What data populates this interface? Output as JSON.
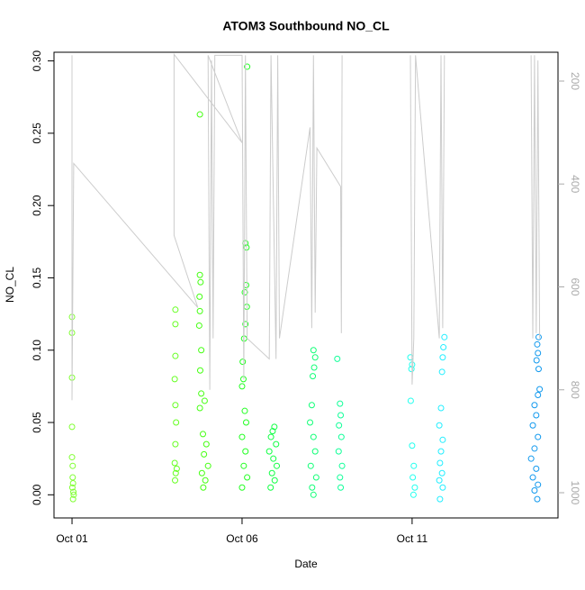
{
  "chart_data": {
    "type": "scatter",
    "title": "ATOM3 Southbound NO_CL",
    "x_label": "Date",
    "y_label": "NO_CL",
    "xlim": [
      -0.53,
      14.29
    ],
    "ylim": [
      -0.016,
      0.306
    ],
    "y2lim": [
      1049,
      144
    ],
    "xticks": [
      {
        "value": 0,
        "label": "Oct 01"
      },
      {
        "value": 5,
        "label": "Oct 06"
      },
      {
        "value": 10,
        "label": "Oct 11"
      }
    ],
    "yticks": [
      {
        "value": 0,
        "label": "0.00"
      },
      0.05,
      {
        "value": 0.1,
        "label": "0.10"
      },
      0.15,
      {
        "value": 0.2,
        "label": "0.20"
      },
      0.25,
      {
        "value": 0.3,
        "label": "0.30"
      }
    ],
    "y2ticks": [
      200,
      400,
      600,
      800,
      1000
    ],
    "series": [
      {
        "color": "#80ff33",
        "x": [
          0.0,
          0.0,
          0.0,
          0.0,
          0.0,
          0.02,
          0.02,
          0.03,
          0.01,
          0.04,
          0.05,
          0.03
        ],
        "values": [
          0.123,
          0.112,
          0.081,
          0.047,
          0.026,
          0.02,
          0.012,
          0.008,
          0.005,
          0.002,
          0.0,
          -0.003
        ]
      },
      {
        "color": "#66ff22",
        "x": [
          3.04,
          3.04,
          3.04,
          3.02,
          3.04,
          3.06,
          3.04,
          3.02,
          3.08,
          3.05,
          3.03
        ],
        "values": [
          0.128,
          0.118,
          0.096,
          0.08,
          0.062,
          0.05,
          0.035,
          0.022,
          0.018,
          0.015,
          0.01
        ]
      },
      {
        "color": "#44ff11",
        "x": [
          3.76,
          3.76,
          3.78,
          3.75,
          3.76,
          3.74,
          3.8,
          3.77,
          3.8,
          3.76,
          3.9,
          3.85,
          3.95,
          3.88,
          4.0,
          3.82,
          3.92,
          3.86
        ],
        "values": [
          0.263,
          0.152,
          0.147,
          0.137,
          0.127,
          0.117,
          0.1,
          0.086,
          0.07,
          0.06,
          0.065,
          0.042,
          0.035,
          0.028,
          0.02,
          0.015,
          0.01,
          0.005
        ]
      },
      {
        "color": "#22ff22",
        "x": [
          5.15,
          5.1,
          5.13,
          5.12,
          5.08,
          5.14,
          5.1,
          5.06,
          5.02,
          5.04,
          5.0,
          5.08,
          5.12,
          5.0,
          5.1,
          5.05,
          5.15,
          5.0
        ],
        "values": [
          0.296,
          0.174,
          0.171,
          0.145,
          0.14,
          0.13,
          0.118,
          0.108,
          0.092,
          0.08,
          0.075,
          0.058,
          0.05,
          0.04,
          0.03,
          0.02,
          0.012,
          0.005
        ]
      },
      {
        "color": "#11ff44",
        "x": [
          5.95,
          5.9,
          5.85,
          6.0,
          5.8,
          5.92,
          6.02,
          5.88,
          5.96,
          5.84
        ],
        "values": [
          0.047,
          0.044,
          0.04,
          0.035,
          0.03,
          0.025,
          0.02,
          0.015,
          0.01,
          0.005
        ]
      },
      {
        "color": "#11ff77",
        "x": [
          7.1,
          7.15,
          7.12,
          7.08,
          7.05,
          7.0,
          7.1,
          7.15,
          7.02,
          7.18,
          7.06,
          7.1
        ],
        "values": [
          0.1,
          0.095,
          0.088,
          0.082,
          0.062,
          0.05,
          0.04,
          0.03,
          0.02,
          0.012,
          0.005,
          0.0
        ]
      },
      {
        "color": "#11ff99",
        "x": [
          7.8,
          7.88,
          7.9,
          7.85,
          7.92,
          7.84,
          7.94,
          7.88,
          7.9
        ],
        "values": [
          0.094,
          0.063,
          0.055,
          0.048,
          0.04,
          0.03,
          0.02,
          0.012,
          0.005
        ]
      },
      {
        "color": "#22ffee",
        "x": [
          9.95,
          10.0,
          9.98,
          9.96,
          10.0,
          10.05,
          10.02,
          10.08,
          10.04
        ],
        "values": [
          0.095,
          0.09,
          0.087,
          0.065,
          0.034,
          0.02,
          0.012,
          0.005,
          0.0
        ]
      },
      {
        "color": "#22eeff",
        "x": [
          10.95,
          10.92,
          10.9,
          10.88,
          10.85,
          10.8,
          10.9,
          10.85,
          10.82,
          10.88,
          10.8,
          10.9,
          10.82
        ],
        "values": [
          0.109,
          0.102,
          0.095,
          0.085,
          0.06,
          0.048,
          0.038,
          0.03,
          0.022,
          0.015,
          0.01,
          0.005,
          -0.003
        ]
      },
      {
        "color": "#1199ee",
        "x": [
          13.72,
          13.68,
          13.7,
          13.66,
          13.72,
          13.75,
          13.7,
          13.6,
          13.65,
          13.55,
          13.7,
          13.6,
          13.5,
          13.65,
          13.55,
          13.7,
          13.6,
          13.68
        ],
        "values": [
          0.109,
          0.104,
          0.098,
          0.093,
          0.087,
          0.073,
          0.069,
          0.062,
          0.055,
          0.048,
          0.04,
          0.032,
          0.025,
          0.018,
          0.012,
          0.007,
          0.003,
          -0.003
        ]
      },
      {
        "type": "line",
        "axis": "y2",
        "color": "#cccccc",
        "x": [
          0.0,
          0.0,
          0.05,
          3.7,
          3.0,
          3.0,
          5.0,
          4.0,
          4.05,
          4.1,
          4.15,
          4.2,
          5.0,
          5.05,
          5.1,
          5.15,
          5.8,
          5.85,
          6.0,
          6.05,
          6.1,
          7.0,
          7.05,
          7.1,
          7.15,
          7.2,
          7.9,
          7.92,
          7.94,
          null,
          9.95,
          10.0,
          10.05,
          10.1,
          10.8,
          10.85,
          10.9,
          10.95,
          null,
          13.5,
          13.55,
          13.6,
          13.65,
          13.7,
          13.75
        ],
        "values": [
          150,
          820,
          360,
          640,
          500,
          148,
          320,
          150,
          800,
          160,
          700,
          150,
          150,
          780,
          150,
          700,
          740,
          150,
          740,
          150,
          700,
          290,
          680,
          150,
          650,
          330,
          405,
          690,
          150,
          null,
          150,
          790,
          700,
          150,
          700,
          150,
          680,
          150,
          null,
          150,
          700,
          150,
          690,
          160,
          700
        ]
      }
    ]
  }
}
